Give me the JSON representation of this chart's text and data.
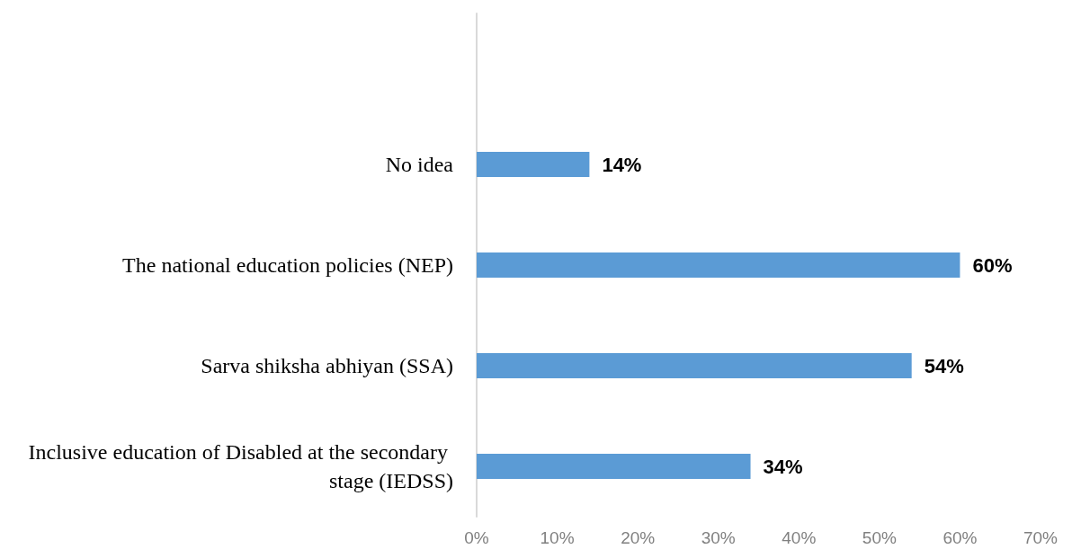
{
  "chart_data": {
    "type": "bar",
    "orientation": "horizontal",
    "categories": [
      null,
      "No idea",
      "The national education policies (NEP)",
      "Sarva shiksha abhiyan (SSA)",
      "Inclusive education of Disabled at the secondary stage (IEDSS)"
    ],
    "values": [
      null,
      14,
      60,
      54,
      34
    ],
    "value_labels": [
      null,
      "14%",
      "60%",
      "54%",
      "34%"
    ],
    "color": "#5b9bd5",
    "xlim": [
      0,
      70
    ],
    "xticks": [
      {
        "value": 0,
        "label": "0%"
      },
      {
        "value": 10,
        "label": "10%"
      },
      {
        "value": 20,
        "label": "20%"
      },
      {
        "value": 30,
        "label": "30%"
      },
      {
        "value": 40,
        "label": "40%"
      },
      {
        "value": 50,
        "label": "50%"
      },
      {
        "value": 60,
        "label": "60%"
      },
      {
        "value": 70,
        "label": "70%"
      }
    ],
    "grid": false
  }
}
